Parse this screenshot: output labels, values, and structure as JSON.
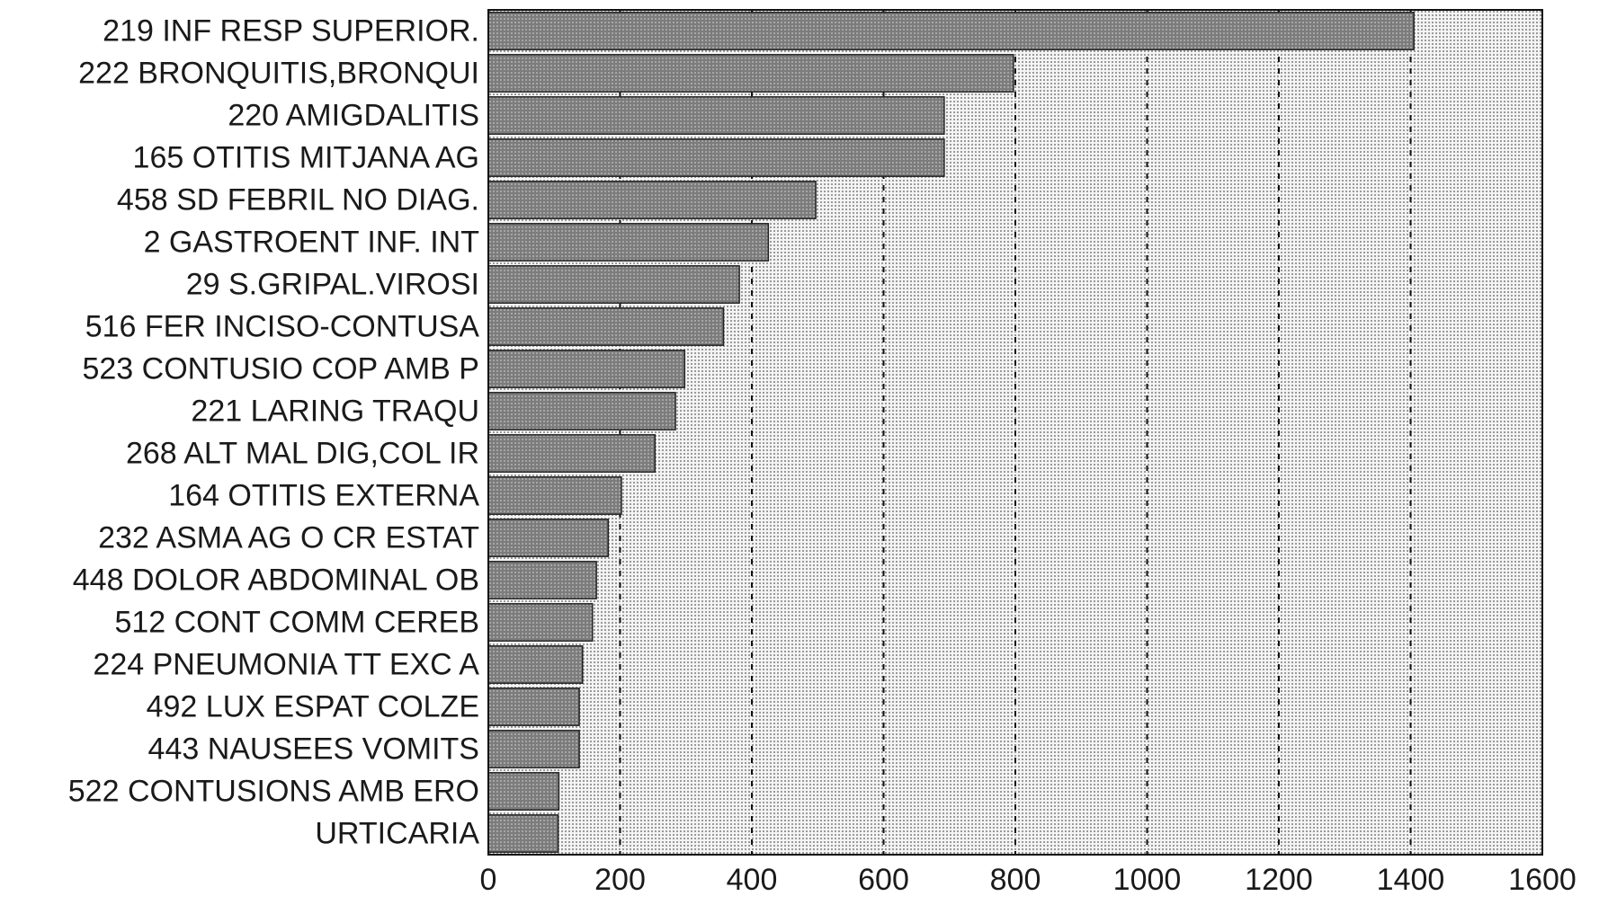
{
  "chart_data": {
    "type": "bar",
    "orientation": "horizontal",
    "title": "",
    "xlabel": "",
    "ylabel": "",
    "xlim": [
      0,
      1600
    ],
    "x_ticks": [
      0,
      200,
      400,
      600,
      800,
      1000,
      1200,
      1400,
      1600
    ],
    "grid": "vertical dashed",
    "categories": [
      "219 INF RESP SUPERIOR.",
      "222 BRONQUITIS,BRONQUI",
      "220 AMIGDALITIS",
      "165 OTITIS MITJANA AG",
      "458 SD FEBRIL NO DIAG.",
      "2 GASTROENT INF. INT",
      "29 S.GRIPAL.VIROSI",
      "516 FER INCISO-CONTUSA",
      "523 CONTUSIO COP AMB P",
      "221 LARING TRAQU",
      "268 ALT MAL DIG,COL IR",
      "164 OTITIS EXTERNA",
      "232 ASMA AG O CR ESTAT",
      "448 DOLOR ABDOMINAL OB",
      "512 CONT COMM CEREB",
      "224 PNEUMONIA TT EXC A",
      "492 LUX ESPAT COLZE",
      "443 NAUSEES VOMITS",
      "522 CONTUSIONS AMB ERO",
      "URTICARIA"
    ],
    "values": [
      1405,
      797,
      692,
      692,
      497,
      425,
      381,
      357,
      298,
      284,
      253,
      202,
      182,
      164,
      158,
      143,
      138,
      138,
      107,
      106
    ],
    "bar_color": "#888888",
    "plot_background": "#e8e8e8"
  }
}
